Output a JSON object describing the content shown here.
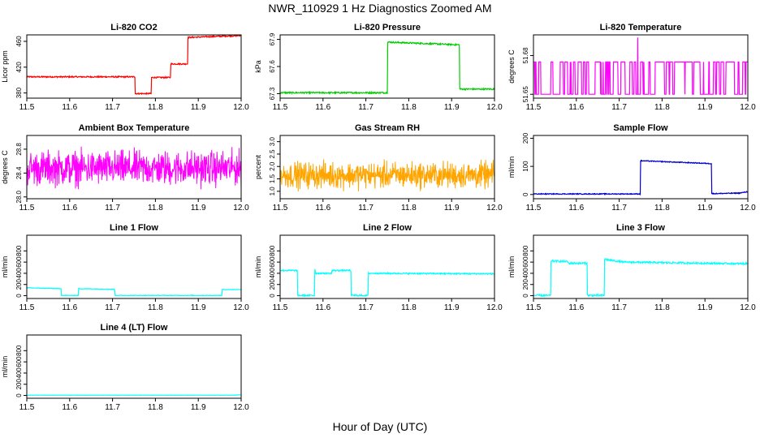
{
  "figure": {
    "title": "NWR_110929  1 Hz Diagnostics Zoomed AM",
    "xlabel": "Hour of Day (UTC)"
  },
  "chart_data": [
    {
      "type": "line",
      "title": "Li-820 CO2",
      "ylabel": "Licor ppm",
      "color": "#ff0000",
      "xlim": [
        11.5,
        12.0
      ],
      "ylim": [
        372,
        470
      ],
      "xticks": [
        "11.5",
        "11.6",
        "11.7",
        "11.8",
        "11.9",
        "12.0"
      ],
      "xtick_values": [
        11.5,
        11.6,
        11.7,
        11.8,
        11.9,
        12.0
      ],
      "yticks": [
        "380",
        "420",
        "460"
      ],
      "ytick_values": [
        380,
        420,
        460
      ],
      "style": "step",
      "noise": 1,
      "series": [
        {
          "x": [
            11.5,
            11.752,
            11.753,
            11.79,
            11.791,
            11.835,
            11.836,
            11.875,
            11.876,
            12.0
          ],
          "y": [
            405,
            405,
            379,
            379,
            404,
            404,
            425,
            425,
            466,
            469
          ]
        }
      ]
    },
    {
      "type": "line",
      "title": "Li-820 Pressure",
      "ylabel": "kPa",
      "color": "#00cc00",
      "xlim": [
        11.5,
        12.0
      ],
      "ylim": [
        67.25,
        67.95
      ],
      "xticks": [
        "11.5",
        "11.6",
        "11.7",
        "11.8",
        "11.9",
        "12.0"
      ],
      "xtick_values": [
        11.5,
        11.6,
        11.7,
        11.8,
        11.9,
        12.0
      ],
      "yticks": [
        "67.3",
        "67.6",
        "67.9"
      ],
      "ytick_values": [
        67.3,
        67.6,
        67.9
      ],
      "style": "step",
      "noise": 0.008,
      "series": [
        {
          "x": [
            11.5,
            11.75,
            11.751,
            11.918,
            11.919,
            12.0
          ],
          "y": [
            67.31,
            67.31,
            67.87,
            67.84,
            67.35,
            67.35
          ]
        }
      ]
    },
    {
      "type": "line",
      "title": "Li-820 Temperature",
      "ylabel": "degrees C",
      "color": "#ff00ff",
      "xlim": [
        11.5,
        12.0
      ],
      "ylim": [
        51.647,
        51.696
      ],
      "xticks": [
        "11.5",
        "11.6",
        "11.7",
        "11.8",
        "11.9",
        "12.0"
      ],
      "xtick_values": [
        11.5,
        11.6,
        11.7,
        11.8,
        11.9,
        12.0
      ],
      "yticks": [
        "51.65",
        "51.68"
      ],
      "ytick_values": [
        51.65,
        51.68
      ],
      "style": "binary",
      "low": 51.65,
      "high": 51.675,
      "spike": {
        "x": 11.743,
        "y": 51.694
      }
    },
    {
      "type": "line",
      "title": "Ambient Box Temperature",
      "ylabel": "degrees C",
      "color": "#ff00ff",
      "xlim": [
        11.5,
        12.0
      ],
      "ylim": [
        27.97,
        29.03
      ],
      "xticks": [
        "11.5",
        "11.6",
        "11.7",
        "11.8",
        "11.9",
        "12.0"
      ],
      "xtick_values": [
        11.5,
        11.6,
        11.7,
        11.8,
        11.9,
        12.0
      ],
      "yticks": [
        "28.0",
        "28.4",
        "28.8"
      ],
      "ytick_values": [
        28.0,
        28.4,
        28.8
      ],
      "style": "noise",
      "center": 28.48,
      "amp": 0.3
    },
    {
      "type": "line",
      "title": "Gas Stream RH",
      "ylabel": "percent",
      "color": "#ffa500",
      "xlim": [
        11.5,
        12.0
      ],
      "ylim": [
        0.7,
        3.25
      ],
      "xticks": [
        "11.5",
        "11.6",
        "11.7",
        "11.8",
        "11.9",
        "12.0"
      ],
      "xtick_values": [
        11.5,
        11.6,
        11.7,
        11.8,
        11.9,
        12.0
      ],
      "yticks": [
        "1.0",
        "1.5",
        "2.0",
        "2.5",
        "3.0"
      ],
      "ytick_values": [
        1.0,
        1.5,
        2.0,
        2.5,
        3.0
      ],
      "style": "noise",
      "center": 1.65,
      "amp": 0.55
    },
    {
      "type": "line",
      "title": "Sample Flow",
      "ylabel": "ml/min",
      "color": "#0000cc",
      "xlim": [
        11.5,
        12.0
      ],
      "ylim": [
        -15,
        210
      ],
      "xticks": [
        "11.5",
        "11.6",
        "11.7",
        "11.8",
        "11.9",
        "12.0"
      ],
      "xtick_values": [
        11.5,
        11.6,
        11.7,
        11.8,
        11.9,
        12.0
      ],
      "yticks": [
        "0",
        "100",
        "200"
      ],
      "ytick_values": [
        0,
        100,
        200
      ],
      "style": "step",
      "noise": 1.5,
      "series": [
        {
          "x": [
            11.5,
            11.749,
            11.75,
            11.915,
            11.916,
            11.98,
            12.0
          ],
          "y": [
            2,
            2,
            120,
            110,
            3,
            5,
            10
          ]
        }
      ]
    },
    {
      "type": "line",
      "title": "Line 1 Flow",
      "ylabel": "ml/min",
      "color": "#00ffff",
      "xlim": [
        11.5,
        12.0
      ],
      "ylim": [
        -50,
        1080
      ],
      "xticks": [
        "11.5",
        "11.6",
        "11.7",
        "11.8",
        "11.9",
        "12.0"
      ],
      "xtick_values": [
        11.5,
        11.6,
        11.7,
        11.8,
        11.9,
        12.0
      ],
      "yticks": [
        "0",
        "200",
        "400",
        "600",
        "800"
      ],
      "ytick_values": [
        0,
        200,
        400,
        600,
        800
      ],
      "style": "step",
      "noise": 5,
      "series": [
        {
          "x": [
            11.5,
            11.58,
            11.581,
            11.62,
            11.621,
            11.705,
            11.706,
            11.955,
            11.956,
            12.0
          ],
          "y": [
            140,
            125,
            5,
            5,
            125,
            115,
            5,
            5,
            110,
            110
          ]
        }
      ]
    },
    {
      "type": "line",
      "title": "Line 2 Flow",
      "ylabel": "ml/min",
      "color": "#00ffff",
      "xlim": [
        11.5,
        12.0
      ],
      "ylim": [
        -50,
        1080
      ],
      "xticks": [
        "11.5",
        "11.6",
        "11.7",
        "11.8",
        "11.9",
        "12.0"
      ],
      "xtick_values": [
        11.5,
        11.6,
        11.7,
        11.8,
        11.9,
        12.0
      ],
      "yticks": [
        "0",
        "200",
        "400",
        "600",
        "800"
      ],
      "ytick_values": [
        0,
        200,
        400,
        600,
        800
      ],
      "style": "step",
      "noise": 12,
      "series": [
        {
          "x": [
            11.5,
            11.54,
            11.541,
            11.58,
            11.581,
            11.583,
            11.62,
            11.621,
            11.665,
            11.666,
            11.705,
            11.706,
            12.0
          ],
          "y": [
            450,
            450,
            5,
            5,
            480,
            400,
            400,
            450,
            450,
            5,
            5,
            400,
            390
          ]
        }
      ]
    },
    {
      "type": "line",
      "title": "Line 3 Flow",
      "ylabel": "ml/min",
      "color": "#00ffff",
      "xlim": [
        11.5,
        12.0
      ],
      "ylim": [
        -50,
        1080
      ],
      "xticks": [
        "11.5",
        "11.6",
        "11.7",
        "11.8",
        "11.9",
        "12.0"
      ],
      "xtick_values": [
        11.5,
        11.6,
        11.7,
        11.8,
        11.9,
        12.0
      ],
      "yticks": [
        "0",
        "200",
        "400",
        "600",
        "800"
      ],
      "ytick_values": [
        0,
        200,
        400,
        600,
        800
      ],
      "style": "step",
      "noise": 15,
      "series": [
        {
          "x": [
            11.5,
            11.54,
            11.541,
            11.58,
            11.581,
            11.625,
            11.626,
            11.665,
            11.666,
            11.71,
            12.0
          ],
          "y": [
            5,
            5,
            620,
            610,
            580,
            580,
            5,
            5,
            650,
            600,
            570
          ]
        }
      ]
    },
    {
      "type": "line",
      "title": "Line 4 (LT) Flow",
      "ylabel": "ml/min",
      "color": "#00ffff",
      "xlim": [
        11.5,
        12.0
      ],
      "ylim": [
        -50,
        1080
      ],
      "xticks": [
        "11.5",
        "11.6",
        "11.7",
        "11.8",
        "11.9",
        "12.0"
      ],
      "xtick_values": [
        11.5,
        11.6,
        11.7,
        11.8,
        11.9,
        12.0
      ],
      "yticks": [
        "0",
        "200",
        "400",
        "600",
        "800"
      ],
      "ytick_values": [
        0,
        200,
        400,
        600,
        800
      ],
      "style": "step",
      "noise": 2,
      "series": [
        {
          "x": [
            11.5,
            11.98,
            12.0
          ],
          "y": [
            5,
            5,
            12
          ]
        }
      ]
    }
  ]
}
